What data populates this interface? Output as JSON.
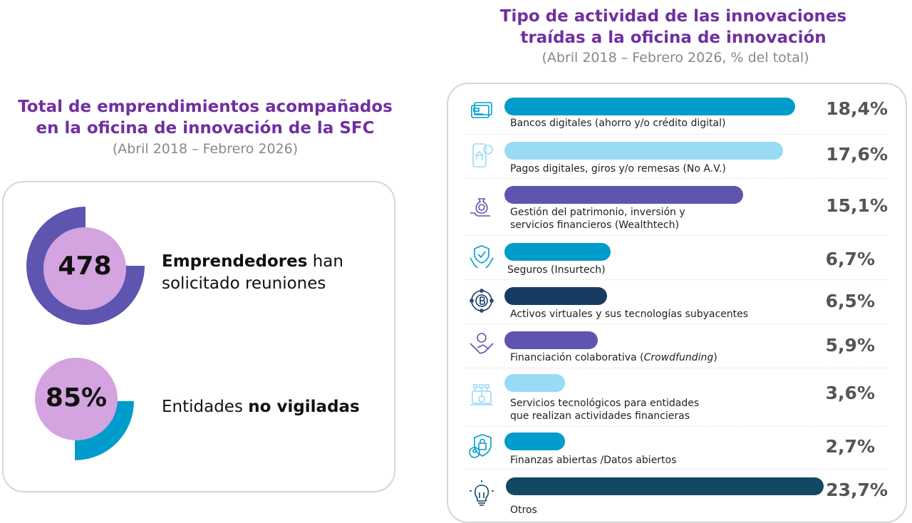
{
  "left": {
    "title_line1": "Total de emprendimientos acompañados",
    "title_line2": "en la oficina de innovación de la SFC",
    "subtitle": "(Abril 2018 – Febrero 2026)",
    "kpis": [
      {
        "value": "478",
        "text_bold": "Emprendedores",
        "text_rest": " han",
        "text_line2": "solicitado reuniones",
        "ring_fraction": 0.75,
        "ring_color": "#5e55b0"
      },
      {
        "value": "85%",
        "text_rest": "Entidades ",
        "text_bold": "no vigiladas",
        "ring_fraction": 0.25,
        "ring_color": "#009ccb"
      }
    ],
    "circle_color": "#d4a4e0"
  },
  "chart_data": {
    "type": "bar",
    "orientation": "horizontal",
    "title_line1": "Tipo de actividad de las innovaciones",
    "title_line2": "traídas a la oficina de innovación",
    "subtitle": "(Abril 2018 – Febrero 2026, % del total)",
    "unit": "%",
    "categories": [
      "Bancos digitales (ahorro y/o crédito digital)",
      "Pagos digitales, giros y/o remesas (No A.V.)",
      "Gestión del patrimonio, inversión y\nservicios financieros (Wealthtech)",
      "Seguros (Insurtech)",
      "Activos virtuales y sus tecnologías subyacentes",
      "Financiación colaborativa (Crowdfunding)",
      "Servicios tecnológicos para entidades\nque realizan actividades financieras",
      "Finanzas abiertas /Datos abiertos",
      "Otros"
    ],
    "values": [
      18.4,
      17.6,
      15.1,
      6.7,
      6.5,
      5.9,
      3.6,
      2.7,
      23.7
    ],
    "value_labels": [
      "18,4%",
      "17,6%",
      "15,1%",
      "6,7%",
      "6,5%",
      "5,9%",
      "3,6%",
      "2,7%",
      "23,7%"
    ],
    "colors": [
      "#009ccb",
      "#99daf5",
      "#5e55b0",
      "#009ccb",
      "#173a63",
      "#5e55b0",
      "#99daf5",
      "#009ccb",
      "#124862"
    ],
    "icons": [
      "credit-card-icon",
      "mobile-payment-icon",
      "money-bag-hand-icon",
      "shield-hands-icon",
      "bitcoin-network-icon",
      "handshake-money-icon",
      "laptop-gear-icon",
      "shield-lock-user-icon",
      "lightbulb-icon"
    ]
  }
}
